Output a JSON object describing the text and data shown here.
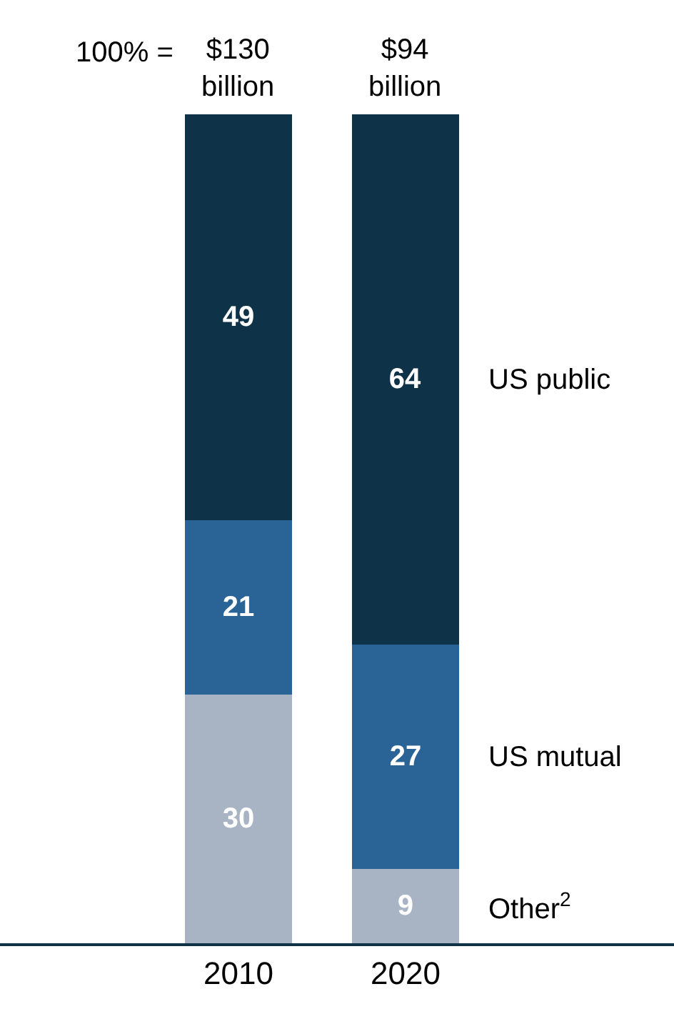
{
  "chart_data": {
    "type": "bar",
    "stacked": true,
    "categories": [
      "2010",
      "2020"
    ],
    "series": [
      {
        "name": "Other$^{2}$",
        "color": "#a8b4c4",
        "values": [
          30,
          9
        ]
      },
      {
        "name": "US mutual",
        "color": "#2a6496",
        "values": [
          21,
          27
        ]
      },
      {
        "name": "US public",
        "color": "#0e3349",
        "values": [
          49,
          64
        ]
      }
    ],
    "annotations": [
      "100% =",
      "$130 billion",
      "$94 billion"
    ],
    "data_labels": true,
    "legend": false,
    "tick_labels": "x"
  }
}
